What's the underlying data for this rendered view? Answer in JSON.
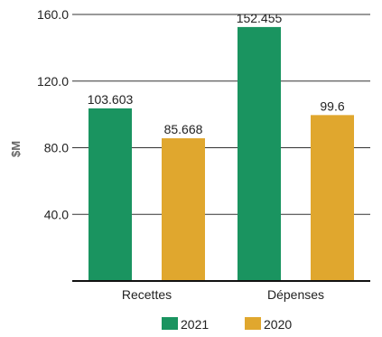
{
  "chart_data": {
    "type": "bar",
    "categories": [
      "Recettes",
      "Dépenses"
    ],
    "series": [
      {
        "name": "2021",
        "values": [
          103.603,
          152.455
        ],
        "labels": [
          "103.603",
          "152.455"
        ],
        "color": "#1a9460"
      },
      {
        "name": "2020",
        "values": [
          85.668,
          99.6
        ],
        "labels": [
          "85.668",
          "99.6"
        ],
        "color": "#e0a72e"
      }
    ],
    "ylabel": "$M",
    "yticks": [
      40,
      80,
      120,
      160
    ],
    "ytick_labels": [
      "40.0",
      "80.0",
      "120.0",
      "160.0"
    ],
    "ylim": [
      0,
      160
    ],
    "grid": true,
    "legend": "bottom-center"
  }
}
